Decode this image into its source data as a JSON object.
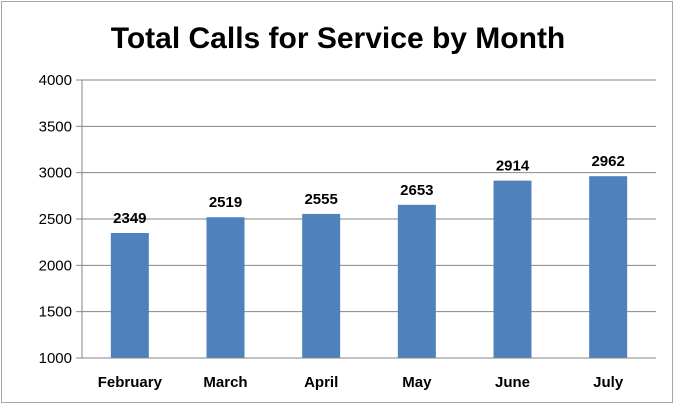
{
  "chart_data": {
    "type": "bar",
    "title": "Total Calls for Service by Month",
    "xlabel": "",
    "ylabel": "",
    "categories": [
      "February",
      "March",
      "April",
      "May",
      "June",
      "July"
    ],
    "values": [
      2349,
      2519,
      2555,
      2653,
      2914,
      2962
    ],
    "data_labels": [
      "2349",
      "2519",
      "2555",
      "2653",
      "2914",
      "2962"
    ],
    "ylim": [
      1000,
      4000
    ],
    "yticks": [
      1000,
      1500,
      2000,
      2500,
      3000,
      3500,
      4000
    ],
    "ytick_labels": [
      "1000",
      "1500",
      "2000",
      "2500",
      "3000",
      "3500",
      "4000"
    ],
    "grid": true,
    "legend": "none",
    "colors": {
      "bar": "#4f81bd",
      "grid": "#868686",
      "axis": "#868686",
      "border": "#a6a6a6"
    }
  }
}
